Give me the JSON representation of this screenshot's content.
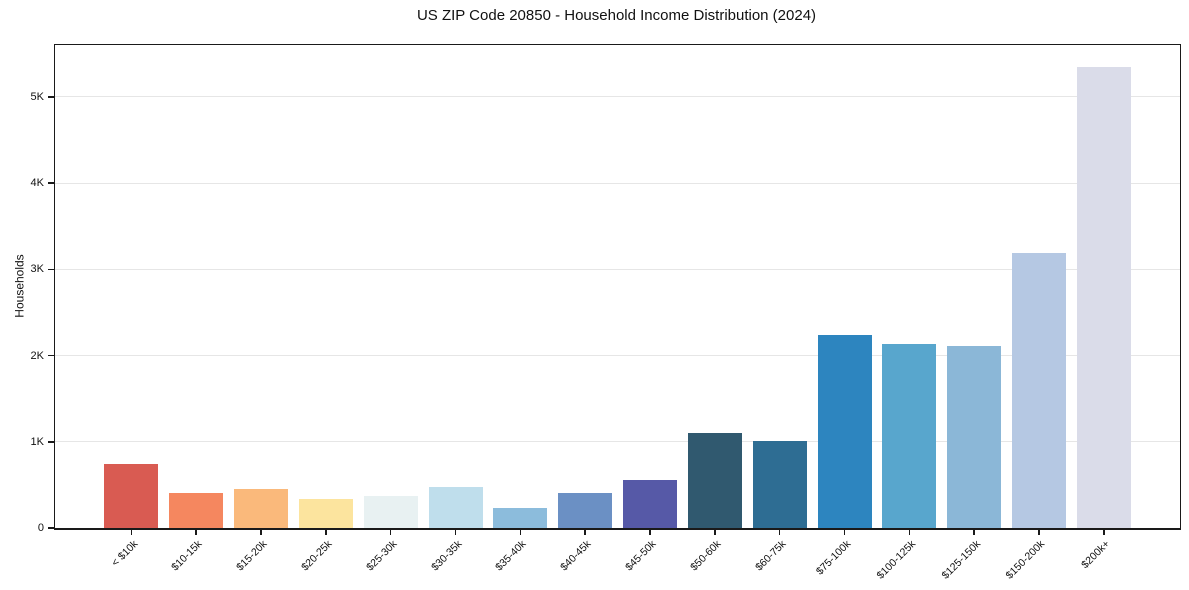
{
  "chart_data": {
    "type": "bar",
    "title": "US ZIP Code 20850 - Household Income Distribution (2024)",
    "xlabel": "",
    "ylabel": "Households",
    "categories": [
      "< $10k",
      "$10-15k",
      "$15-20k",
      "$20-25k",
      "$25-30k",
      "$30-35k",
      "$35-40k",
      "$40-45k",
      "$45-50k",
      "$50-60k",
      "$60-75k",
      "$75-100k",
      "$100-125k",
      "$125-150k",
      "$150-200k",
      "$200k+"
    ],
    "values": [
      740,
      410,
      450,
      340,
      370,
      480,
      235,
      410,
      560,
      1100,
      1010,
      2240,
      2130,
      2110,
      3190,
      5340
    ],
    "bar_colors": [
      "#d95b52",
      "#f5875f",
      "#fab97b",
      "#fce49e",
      "#e8f1f2",
      "#bfdeec",
      "#8cbcdc",
      "#6b90c4",
      "#5659a7",
      "#30596f",
      "#2e6d93",
      "#2d85bf",
      "#58a6cd",
      "#8bb7d7",
      "#b5c8e3",
      "#dadce9"
    ],
    "ylim": [
      0,
      5600
    ],
    "yticks": [
      {
        "value": 0,
        "label": "0"
      },
      {
        "value": 1000,
        "label": "1K"
      },
      {
        "value": 2000,
        "label": "2K"
      },
      {
        "value": 3000,
        "label": "3K"
      },
      {
        "value": 4000,
        "label": "4K"
      },
      {
        "value": 5000,
        "label": "5K"
      }
    ],
    "grid": "horizontal",
    "legend": "none",
    "colors": {
      "axis": "#1a1a1a",
      "grid": "#e6e6e6",
      "background": "#ffffff",
      "text": "#111111"
    }
  }
}
